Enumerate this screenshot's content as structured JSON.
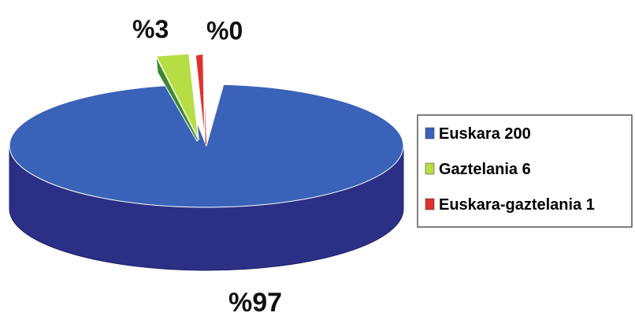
{
  "chart_data": {
    "type": "pie",
    "style": "3d-exploded",
    "slices": [
      {
        "name": "Euskara",
        "value": 200,
        "label": "Euskara 200",
        "percent_label": "%97",
        "color": "#3a62b8",
        "side_color": "#2b2f86"
      },
      {
        "name": "Gaztelania",
        "value": 6,
        "label": "Gaztelania 6",
        "percent_label": "%3",
        "color": "#b7dd45",
        "side_color": "#3c8a2e"
      },
      {
        "name": "Euskara-gaztelania",
        "value": 1,
        "label": "Euskara-gaztelania 1",
        "percent_label": "%0",
        "color": "#e0322c",
        "side_color": "#b21a16"
      }
    ],
    "legend": {
      "position": "right"
    },
    "title": ""
  }
}
